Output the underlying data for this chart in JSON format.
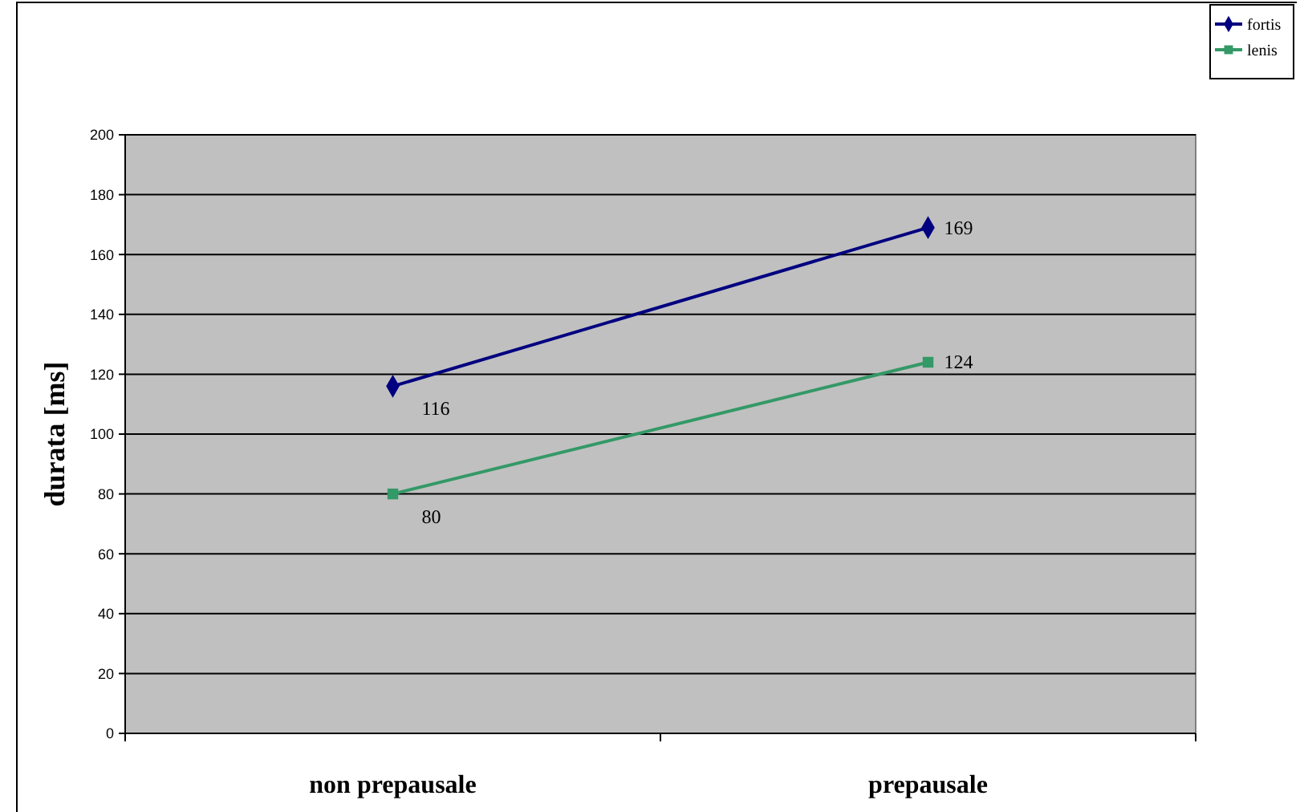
{
  "chart_data": {
    "type": "line",
    "ylabel": "durata [ms]",
    "categories": [
      "non prepausale",
      "prepausale"
    ],
    "series": [
      {
        "name": "fortis",
        "color": "#000080",
        "marker": "diamond",
        "values": [
          116,
          169
        ]
      },
      {
        "name": "lenis",
        "color": "#339966",
        "marker": "square",
        "values": [
          80,
          124
        ]
      }
    ],
    "ylim": [
      0,
      200
    ],
    "yticks": [
      0,
      20,
      40,
      60,
      80,
      100,
      120,
      140,
      160,
      180,
      200
    ],
    "grid": "y",
    "legend": "top right",
    "data_labels": true,
    "line_style": "solid"
  }
}
